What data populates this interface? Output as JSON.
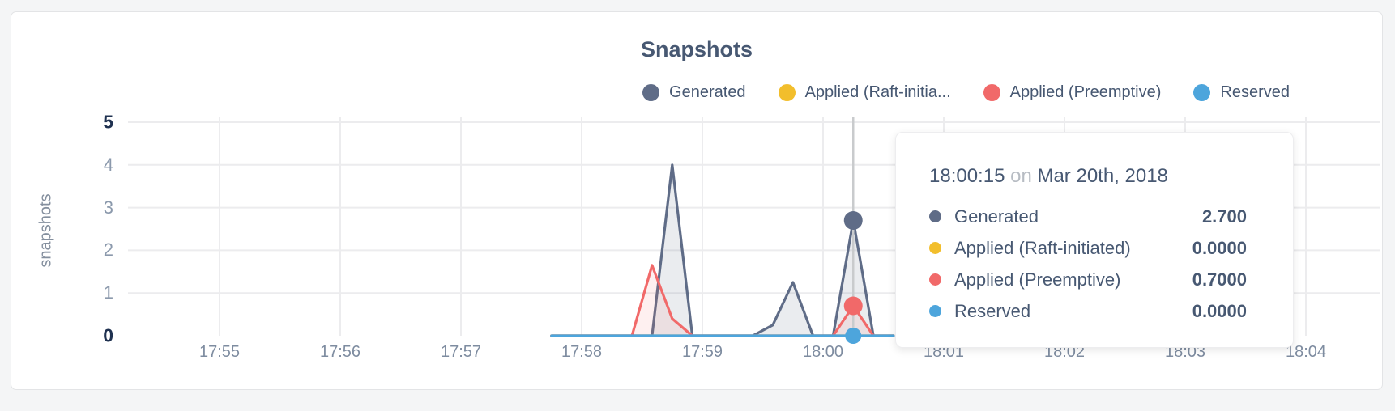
{
  "title": "Snapshots",
  "colors": {
    "accent_slate": "#5F6C87",
    "accent_yellow": "#F2BE2C",
    "accent_red": "#F16969",
    "accent_blue": "#4DA5DC",
    "title_text": "#475872",
    "grid": "#ececee",
    "hover_line": "#c9cbcd"
  },
  "legend": {
    "items": [
      {
        "label": "Generated",
        "color": "#5F6C87"
      },
      {
        "label": "Applied (Raft-initia...",
        "color": "#F2BE2C"
      },
      {
        "label": "Applied (Preemptive)",
        "color": "#F16969"
      },
      {
        "label": "Reserved",
        "color": "#4DA5DC"
      }
    ]
  },
  "tooltip": {
    "time": "18:00:15",
    "conjunction": "on",
    "date": "Mar 20th, 2018",
    "rows": [
      {
        "label": "Generated",
        "value": "2.700",
        "color": "#5F6C87"
      },
      {
        "label": "Applied (Raft-initiated)",
        "value": "0.0000",
        "color": "#F2BE2C"
      },
      {
        "label": "Applied (Preemptive)",
        "value": "0.7000",
        "color": "#F16969"
      },
      {
        "label": "Reserved",
        "value": "0.0000",
        "color": "#4DA5DC"
      }
    ]
  },
  "chart_data": {
    "type": "area",
    "title": "Snapshots",
    "ylabel": "snapshots",
    "ylim": [
      0,
      5
    ],
    "yticks": [
      0,
      1,
      2,
      3,
      4,
      5
    ],
    "xticks": [
      "17:55",
      "17:56",
      "17:57",
      "17:58",
      "17:59",
      "18:00",
      "18:01",
      "18:02",
      "18:03",
      "18:04"
    ],
    "x_origin": "17:55:00",
    "x_tick_step_seconds": 60,
    "grid": "on",
    "legend_position": "top-right",
    "series": [
      {
        "name": "Generated",
        "color": "#5F6C87",
        "fill_opacity": 0.13,
        "points": [
          [
            165,
            0
          ],
          [
            175,
            0
          ],
          [
            185,
            0
          ],
          [
            195,
            0
          ],
          [
            205,
            0
          ],
          [
            215,
            0
          ],
          [
            225,
            4
          ],
          [
            235,
            0
          ],
          [
            245,
            0
          ],
          [
            255,
            0
          ],
          [
            265,
            0
          ],
          [
            275,
            0.25
          ],
          [
            285,
            1.25
          ],
          [
            295,
            0
          ],
          [
            305,
            0
          ],
          [
            315,
            2.7
          ],
          [
            325,
            0
          ],
          [
            335,
            0
          ]
        ]
      },
      {
        "name": "Applied (Raft-initiated)",
        "color": "#F2BE2C",
        "fill_opacity": 0.1,
        "points": [
          [
            165,
            0
          ],
          [
            335,
            0
          ]
        ]
      },
      {
        "name": "Applied (Preemptive)",
        "color": "#F16969",
        "fill_opacity": 0.1,
        "points": [
          [
            165,
            0
          ],
          [
            175,
            0
          ],
          [
            185,
            0
          ],
          [
            195,
            0
          ],
          [
            205,
            0
          ],
          [
            215,
            1.65
          ],
          [
            225,
            0.4
          ],
          [
            235,
            0
          ],
          [
            245,
            0
          ],
          [
            255,
            0
          ],
          [
            265,
            0
          ],
          [
            275,
            0
          ],
          [
            285,
            0
          ],
          [
            295,
            0
          ],
          [
            305,
            0
          ],
          [
            315,
            0.7
          ],
          [
            325,
            0
          ],
          [
            335,
            0
          ]
        ]
      },
      {
        "name": "Reserved",
        "color": "#4DA5DC",
        "fill_opacity": 0.1,
        "points": [
          [
            165,
            0
          ],
          [
            335,
            0
          ]
        ]
      }
    ],
    "hover": {
      "time": "18:00:15",
      "x_seconds": 315,
      "points": [
        {
          "series": "Generated",
          "value": 2.7
        },
        {
          "series": "Applied (Preemptive)",
          "value": 0.7
        },
        {
          "series": "Reserved",
          "value": 0
        }
      ]
    }
  }
}
